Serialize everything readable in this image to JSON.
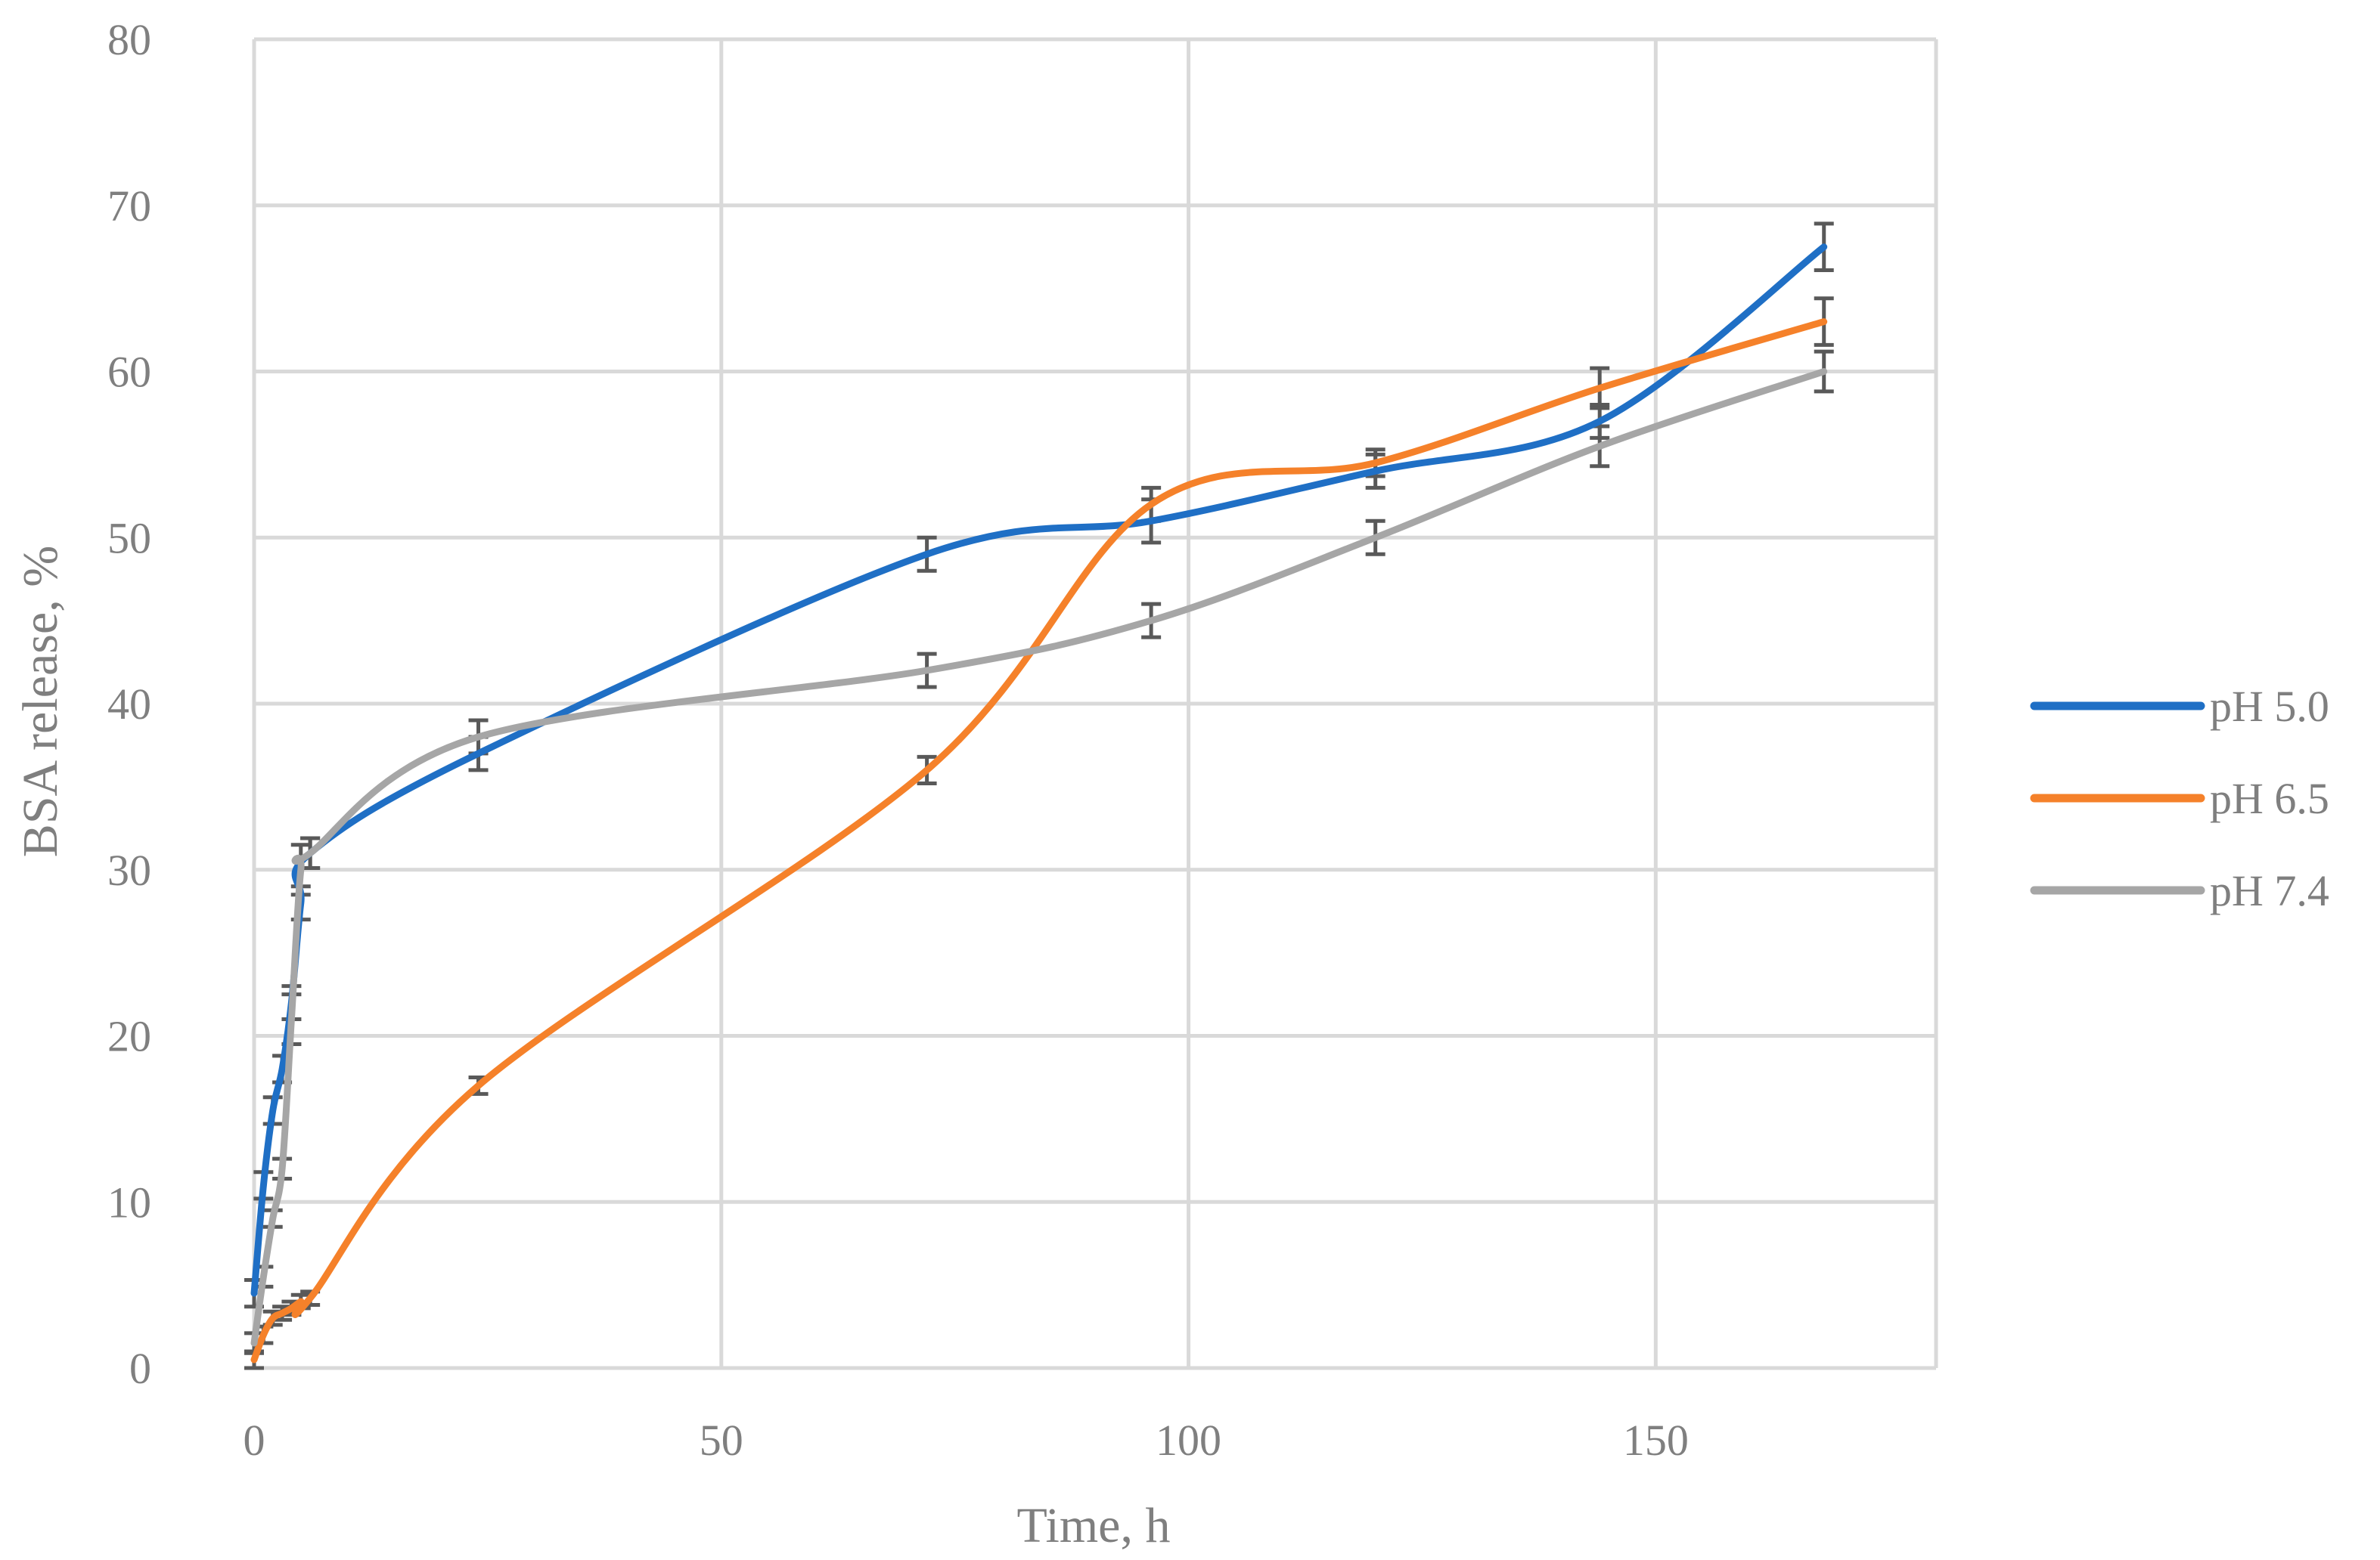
{
  "chart_data": {
    "type": "line",
    "xlabel": "Time, h",
    "ylabel": "BSA release, %",
    "xlim": [
      0,
      180
    ],
    "ylim": [
      0,
      80
    ],
    "x_ticks": [
      0,
      50,
      100,
      150
    ],
    "y_ticks": [
      0,
      10,
      20,
      30,
      40,
      50,
      60,
      70,
      80
    ],
    "grid": true,
    "legend_position": "right",
    "smoothed": true,
    "series": [
      {
        "name": "pH 5.0",
        "color": "#1f6fc5",
        "x": [
          0,
          1,
          2,
          3,
          4,
          5,
          6,
          24,
          72,
          96,
          120,
          144,
          168
        ],
        "y": [
          4.5,
          11,
          15.5,
          18,
          22,
          28,
          31,
          37,
          49,
          51,
          54,
          57,
          67.5
        ],
        "error": [
          0.8,
          0.8,
          0.8,
          0.8,
          1.0,
          1.0,
          0.9,
          1.0,
          1.0,
          1.3,
          1.0,
          1.0,
          1.4
        ]
      },
      {
        "name": "pH 6.5",
        "color": "#f5812a",
        "x": [
          0,
          1,
          2,
          3,
          4,
          5,
          6,
          24,
          72,
          96,
          120,
          144,
          168
        ],
        "y": [
          0.5,
          2,
          3,
          3.3,
          3.6,
          4,
          4.2,
          17,
          36,
          52,
          54.5,
          59,
          63
        ],
        "error": [
          0.5,
          0.5,
          0.4,
          0.4,
          0.4,
          0.4,
          0.4,
          0.5,
          0.8,
          1.0,
          0.8,
          1.2,
          1.4
        ]
      },
      {
        "name": "pH 7.4",
        "color": "#a6a6a6",
        "x": [
          0,
          1,
          2,
          3,
          4,
          5,
          6,
          24,
          72,
          96,
          120,
          144,
          168
        ],
        "y": [
          1.5,
          5.5,
          9,
          12,
          21,
          30,
          31,
          38,
          42,
          45,
          50,
          55.5,
          60
        ],
        "error": [
          0.6,
          0.6,
          0.5,
          0.6,
          1.5,
          1.5,
          0.9,
          1.0,
          1.0,
          1.0,
          1.0,
          1.2,
          1.2
        ]
      }
    ]
  }
}
